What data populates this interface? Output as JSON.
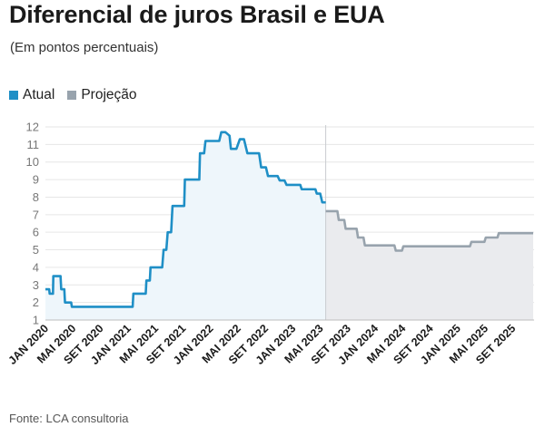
{
  "header": {
    "title": "Diferencial de juros Brasil e EUA",
    "subtitle": "(Em pontos percentuais)"
  },
  "legend": [
    {
      "label": "Atual",
      "color": "#1f8fc6"
    },
    {
      "label": "Projeção",
      "color": "#98a3ad"
    }
  ],
  "source": "Fonte: LCA consultoria",
  "chart_data": {
    "type": "line",
    "ylim": [
      1,
      12
    ],
    "yticks": [
      1,
      2,
      3,
      4,
      5,
      6,
      7,
      8,
      9,
      10,
      11,
      12
    ],
    "xlabels": [
      "JAN 2020",
      "MAI 2020",
      "SET 2020",
      "JAN 2021",
      "MAI 2021",
      "SET 2021",
      "JAN 2022",
      "MAI 2022",
      "SET 2022",
      "JAN 2023",
      "MAI 2023",
      "SET 2023",
      "JAN 2024",
      "MAI 2024",
      "SET 2024",
      "JAN 2025",
      "MAI 2025",
      "SET 2025"
    ],
    "grid": true,
    "legend_position": "top-left",
    "series": [
      {
        "name": "Atual",
        "color": "#1f8fc6",
        "fill": "#eef6fb",
        "points": [
          [
            0.0,
            2.75
          ],
          [
            0.55,
            2.75
          ],
          [
            0.62,
            2.5
          ],
          [
            1.1,
            2.5
          ],
          [
            1.15,
            3.5
          ],
          [
            2.2,
            3.5
          ],
          [
            2.3,
            2.75
          ],
          [
            2.75,
            2.75
          ],
          [
            2.85,
            2.0
          ],
          [
            3.75,
            2.0
          ],
          [
            3.85,
            1.75
          ],
          [
            12.7,
            1.75
          ],
          [
            12.8,
            2.5
          ],
          [
            14.6,
            2.5
          ],
          [
            14.7,
            3.25
          ],
          [
            15.2,
            3.25
          ],
          [
            15.3,
            4.0
          ],
          [
            17.0,
            4.0
          ],
          [
            17.2,
            5.0
          ],
          [
            17.6,
            5.0
          ],
          [
            17.8,
            6.0
          ],
          [
            18.3,
            6.0
          ],
          [
            18.5,
            7.5
          ],
          [
            20.2,
            7.5
          ],
          [
            20.3,
            9.0
          ],
          [
            22.4,
            9.0
          ],
          [
            22.5,
            10.5
          ],
          [
            23.1,
            10.5
          ],
          [
            23.3,
            11.2
          ],
          [
            25.3,
            11.2
          ],
          [
            25.6,
            11.7
          ],
          [
            26.2,
            11.7
          ],
          [
            26.8,
            11.5
          ],
          [
            27.0,
            10.75
          ],
          [
            27.8,
            10.75
          ],
          [
            28.3,
            11.3
          ],
          [
            28.9,
            11.3
          ],
          [
            29.4,
            10.5
          ],
          [
            31.1,
            10.5
          ],
          [
            31.4,
            9.7
          ],
          [
            32.1,
            9.7
          ],
          [
            32.4,
            9.2
          ],
          [
            33.8,
            9.2
          ],
          [
            34.1,
            8.95
          ],
          [
            34.8,
            8.95
          ],
          [
            35.1,
            8.7
          ],
          [
            37.1,
            8.7
          ],
          [
            37.3,
            8.45
          ],
          [
            39.3,
            8.45
          ],
          [
            39.5,
            8.2
          ],
          [
            40.0,
            8.2
          ],
          [
            40.3,
            7.7
          ],
          [
            40.8,
            7.7
          ]
        ]
      },
      {
        "name": "Projeção",
        "color": "#98a3ad",
        "fill": "#eaebee",
        "points": [
          [
            40.8,
            7.2
          ],
          [
            42.5,
            7.2
          ],
          [
            42.7,
            6.7
          ],
          [
            43.5,
            6.7
          ],
          [
            43.7,
            6.2
          ],
          [
            45.3,
            6.2
          ],
          [
            45.5,
            5.7
          ],
          [
            46.3,
            5.7
          ],
          [
            46.5,
            5.25
          ],
          [
            50.8,
            5.25
          ],
          [
            51.0,
            4.95
          ],
          [
            51.9,
            4.95
          ],
          [
            52.1,
            5.2
          ],
          [
            61.8,
            5.2
          ],
          [
            62.0,
            5.45
          ],
          [
            63.9,
            5.45
          ],
          [
            64.1,
            5.7
          ],
          [
            65.8,
            5.7
          ],
          [
            66.0,
            5.95
          ],
          [
            71.0,
            5.95
          ]
        ]
      }
    ]
  }
}
